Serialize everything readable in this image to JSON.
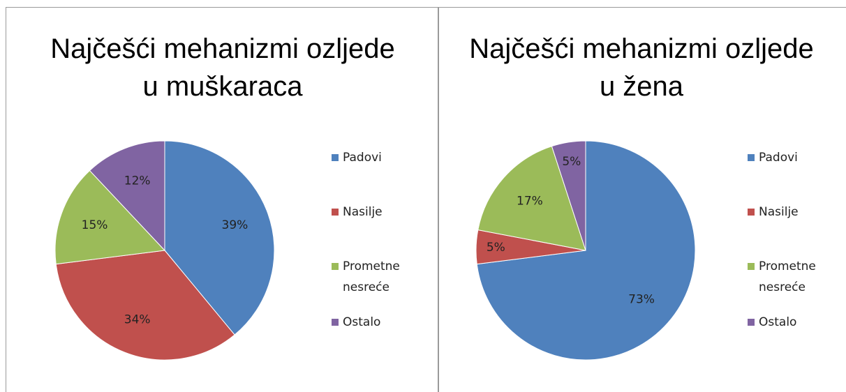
{
  "chart_data": [
    {
      "type": "pie",
      "title": "Najčešći mehanizmi ozljede u muškaraca",
      "categories": [
        "Padovi",
        "Nasilje",
        "Prometne nesreće",
        "Ostalo"
      ],
      "values": [
        39,
        34,
        15,
        12
      ],
      "value_labels": [
        "39%",
        "34%",
        "15%",
        "12%"
      ],
      "colors": [
        "#4f81bd",
        "#c0504d",
        "#9bbb59",
        "#8064a2"
      ],
      "legend": "right"
    },
    {
      "type": "pie",
      "title": "Najčešći mehanizmi ozljede u žena",
      "categories": [
        "Padovi",
        "Nasilje",
        "Prometne nesreće",
        "Ostalo"
      ],
      "values": [
        73,
        5,
        17,
        5
      ],
      "value_labels": [
        "73%",
        "5%",
        "17%",
        "5%"
      ],
      "colors": [
        "#4f81bd",
        "#c0504d",
        "#9bbb59",
        "#8064a2"
      ],
      "legend": "right"
    }
  ]
}
